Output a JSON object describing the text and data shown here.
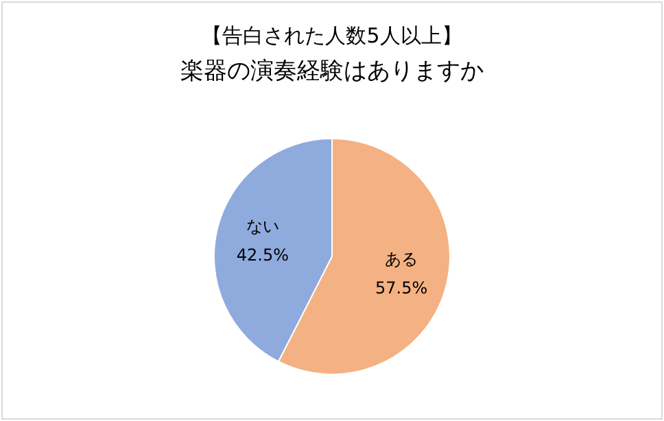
{
  "chart_data": {
    "type": "pie",
    "title": "【告白された人数5人以上】",
    "subtitle": "楽器の演奏経験はありますか",
    "categories": [
      "ある",
      "ない"
    ],
    "values": [
      57.5,
      42.5
    ],
    "colors": [
      "#f4b183",
      "#8faadc"
    ],
    "value_labels": [
      "57.5%",
      "42.5%"
    ]
  }
}
